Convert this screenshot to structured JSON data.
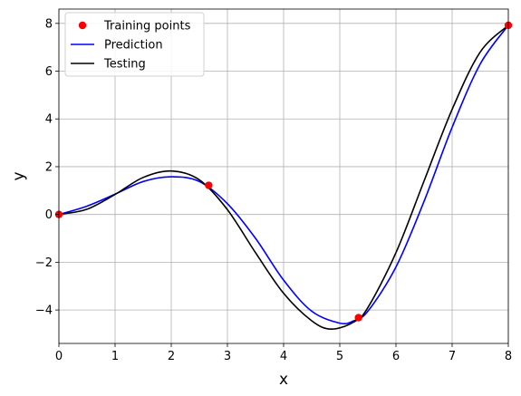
{
  "chart_data": {
    "type": "line",
    "title": "",
    "xlabel": "x",
    "ylabel": "y",
    "xlim": [
      0,
      8
    ],
    "ylim": [
      -5.4,
      8.6
    ],
    "xticks": [
      0,
      1,
      2,
      3,
      4,
      5,
      6,
      7,
      8
    ],
    "yticks": [
      -4,
      -2,
      0,
      2,
      4,
      6,
      8
    ],
    "grid": true,
    "legend_position": "top-left",
    "series": [
      {
        "name": "Training points",
        "kind": "scatter",
        "color": "#ff0000",
        "x": [
          0,
          2.667,
          5.333,
          8
        ],
        "y": [
          0,
          1.22,
          -4.32,
          7.92
        ]
      },
      {
        "name": "Prediction",
        "kind": "line",
        "color": "#0000ff",
        "x": [
          0,
          0.5,
          1.0,
          1.5,
          2.0,
          2.5,
          3.0,
          3.5,
          4.0,
          4.5,
          5.0,
          5.25,
          5.5,
          6.0,
          6.5,
          7.0,
          7.5,
          8.0
        ],
        "y": [
          0,
          0.35,
          0.85,
          1.38,
          1.58,
          1.38,
          0.45,
          -1.0,
          -2.75,
          -4.05,
          -4.55,
          -4.45,
          -4.05,
          -2.2,
          0.55,
          3.65,
          6.3,
          7.92
        ]
      },
      {
        "name": "Testing",
        "kind": "line",
        "color": "#000000",
        "x": [
          0,
          0.5,
          1.0,
          1.5,
          2.0,
          2.5,
          3.0,
          3.5,
          4.0,
          4.5,
          4.85,
          5.25,
          5.5,
          6.0,
          6.5,
          7.0,
          7.5,
          8.0
        ],
        "y": [
          0,
          0.22,
          0.84,
          1.55,
          1.82,
          1.45,
          0.2,
          -1.6,
          -3.3,
          -4.45,
          -4.8,
          -4.5,
          -3.9,
          -1.6,
          1.4,
          4.4,
          6.8,
          7.92
        ]
      }
    ]
  }
}
